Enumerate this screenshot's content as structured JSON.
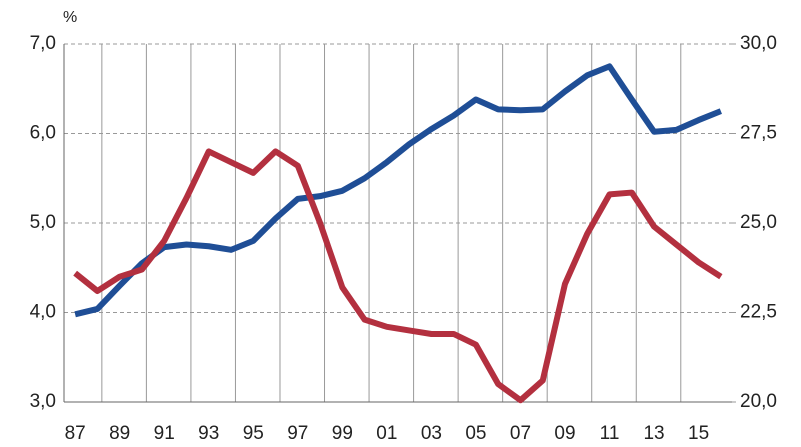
{
  "chart_data": {
    "type": "line",
    "unit_label": "%",
    "categories": [
      "87",
      null,
      "89",
      null,
      "91",
      null,
      "93",
      null,
      "95",
      null,
      "97",
      null,
      "99",
      null,
      "01",
      null,
      "03",
      null,
      "05",
      null,
      "07",
      null,
      "09",
      null,
      "11",
      null,
      "13",
      null,
      "15",
      null
    ],
    "series": [
      {
        "color": "#1f4e96",
        "values": [
          3.98,
          4.04,
          4.3,
          4.55,
          4.73,
          4.76,
          4.74,
          4.7,
          4.8,
          5.05,
          5.27,
          5.3,
          5.36,
          5.5,
          5.68,
          5.88,
          6.05,
          6.2,
          6.38,
          6.27,
          6.26,
          6.27,
          6.47,
          6.65,
          6.75,
          6.38,
          6.02,
          6.04,
          6.15,
          6.25
        ]
      },
      {
        "color": "#b3303f",
        "axis": "y2",
        "values": [
          23.6,
          23.1,
          23.5,
          23.7,
          24.5,
          25.7,
          27.0,
          26.7,
          26.4,
          27.0,
          26.6,
          25.0,
          23.2,
          22.3,
          22.1,
          22.0,
          21.9,
          21.9,
          21.6,
          20.5,
          20.05,
          20.6,
          23.3,
          24.7,
          25.8,
          25.85,
          24.9,
          24.4,
          23.9,
          23.5
        ]
      }
    ],
    "ylim": [
      3,
      7
    ],
    "yticks": [
      {
        "value": 3,
        "label": "3,0"
      },
      {
        "value": 4,
        "label": "4,0"
      },
      {
        "value": 5,
        "label": "5,0"
      },
      {
        "value": 6,
        "label": "6,0"
      },
      {
        "value": 7,
        "label": "7,0"
      }
    ],
    "y2lim": [
      20,
      30
    ],
    "y2ticks": [
      {
        "value": 20,
        "label": "20,0"
      },
      {
        "value": 22.5,
        "label": "22,5"
      },
      {
        "value": 25,
        "label": "25,0"
      },
      {
        "value": 27.5,
        "label": "27,5"
      },
      {
        "value": 30,
        "label": "30,0"
      }
    ],
    "grid": true
  }
}
